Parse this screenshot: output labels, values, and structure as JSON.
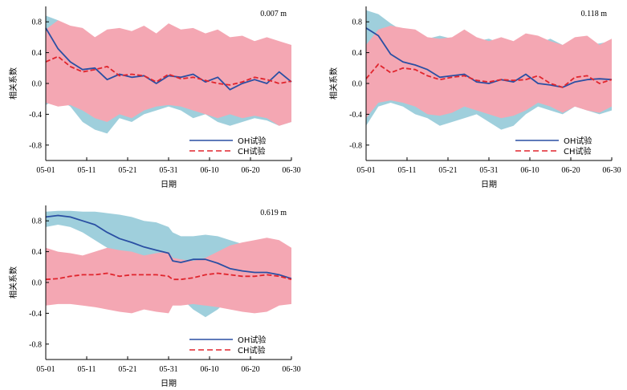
{
  "chart_data": [
    {
      "type": "line",
      "title": "0.007 m",
      "xlabel": "日期",
      "ylabel": "相关系数",
      "ylim": [
        -1.0,
        1.0
      ],
      "yticks": [
        -0.8,
        -0.4,
        0.0,
        0.4,
        0.8
      ],
      "ytick_labels": [
        "-0.8",
        "-0.4",
        "0.0",
        "0.4",
        "0.8"
      ],
      "xticks": [
        0,
        10,
        20,
        30,
        40,
        50,
        60
      ],
      "xtick_labels": [
        "05-01",
        "05-11",
        "05-21",
        "05-31",
        "06-10",
        "06-20",
        "06-30"
      ],
      "legend": {
        "position": "bottom-right",
        "entries": [
          "OH试验",
          "CH试验"
        ]
      },
      "colors": {
        "oh_line": "#2a4fa3",
        "ch_line": "#e0252d",
        "oh_band": "#9fcfdc",
        "ch_band": "#f4a7b3"
      },
      "x": [
        0,
        3,
        6,
        9,
        12,
        15,
        18,
        21,
        24,
        27,
        30,
        33,
        36,
        39,
        42,
        45,
        48,
        51,
        54,
        57,
        60
      ],
      "series": [
        {
          "name": "OH试验",
          "style": "solid",
          "values": [
            0.72,
            0.45,
            0.28,
            0.18,
            0.2,
            0.05,
            0.12,
            0.08,
            0.1,
            0.0,
            0.1,
            0.08,
            0.12,
            0.02,
            0.08,
            -0.08,
            0.0,
            0.05,
            0.0,
            0.15,
            0.02
          ]
        },
        {
          "name": "CH试验",
          "style": "dashed",
          "values": [
            0.28,
            0.35,
            0.22,
            0.15,
            0.18,
            0.22,
            0.1,
            0.12,
            0.1,
            0.02,
            0.12,
            0.06,
            0.08,
            0.04,
            0.0,
            -0.02,
            0.02,
            0.08,
            0.05,
            0.0,
            0.03
          ]
        }
      ],
      "oh_band": {
        "upper": [
          0.88,
          0.82,
          0.7,
          0.66,
          0.55,
          0.6,
          0.58,
          0.55,
          0.52,
          0.5,
          0.6,
          0.58,
          0.55,
          0.6,
          0.58,
          0.55,
          0.5,
          0.55,
          0.52,
          0.5,
          0.5
        ],
        "lower": [
          -0.28,
          -0.2,
          -0.3,
          -0.5,
          -0.6,
          -0.65,
          -0.45,
          -0.5,
          -0.4,
          -0.35,
          -0.3,
          -0.35,
          -0.45,
          -0.4,
          -0.5,
          -0.55,
          -0.5,
          -0.45,
          -0.48,
          -0.55,
          -0.5
        ]
      },
      "ch_band": {
        "upper": [
          0.7,
          0.82,
          0.75,
          0.72,
          0.6,
          0.7,
          0.72,
          0.68,
          0.75,
          0.65,
          0.78,
          0.7,
          0.72,
          0.65,
          0.7,
          0.6,
          0.62,
          0.55,
          0.6,
          0.55,
          0.5
        ],
        "lower": [
          -0.25,
          -0.3,
          -0.28,
          -0.35,
          -0.45,
          -0.5,
          -0.4,
          -0.45,
          -0.35,
          -0.3,
          -0.28,
          -0.3,
          -0.35,
          -0.4,
          -0.45,
          -0.4,
          -0.45,
          -0.42,
          -0.45,
          -0.55,
          -0.5
        ]
      }
    },
    {
      "type": "line",
      "title": "0.118 m",
      "xlabel": "日期",
      "ylabel": "相关系数",
      "ylim": [
        -1.0,
        1.0
      ],
      "yticks": [
        -0.8,
        -0.4,
        0.0,
        0.4,
        0.8
      ],
      "ytick_labels": [
        "-0.8",
        "-0.4",
        "0.0",
        "0.4",
        "0.8"
      ],
      "xticks": [
        0,
        10,
        20,
        30,
        40,
        50,
        60
      ],
      "xtick_labels": [
        "05-01",
        "05-11",
        "05-21",
        "05-31",
        "06-10",
        "06-20",
        "06-30"
      ],
      "legend": {
        "position": "bottom-right",
        "entries": [
          "OH试验",
          "CH试验"
        ]
      },
      "colors": {
        "oh_line": "#2a4fa3",
        "ch_line": "#e0252d",
        "oh_band": "#9fcfdc",
        "ch_band": "#f4a7b3"
      },
      "x": [
        0,
        3,
        6,
        9,
        12,
        15,
        18,
        21,
        24,
        27,
        30,
        33,
        36,
        39,
        42,
        45,
        48,
        51,
        54,
        57,
        60
      ],
      "series": [
        {
          "name": "OH试验",
          "style": "solid",
          "values": [
            0.72,
            0.62,
            0.38,
            0.28,
            0.24,
            0.18,
            0.08,
            0.1,
            0.12,
            0.02,
            0.0,
            0.05,
            0.02,
            0.12,
            0.0,
            -0.02,
            -0.05,
            0.02,
            0.05,
            0.06,
            0.05
          ]
        },
        {
          "name": "CH试验",
          "style": "dashed",
          "values": [
            0.06,
            0.25,
            0.14,
            0.2,
            0.18,
            0.1,
            0.05,
            0.08,
            0.1,
            0.04,
            0.02,
            0.05,
            0.04,
            0.05,
            0.1,
            0.0,
            -0.05,
            0.08,
            0.1,
            0.0,
            0.05
          ]
        }
      ],
      "oh_band": {
        "upper": [
          0.95,
          0.9,
          0.78,
          0.68,
          0.62,
          0.58,
          0.62,
          0.58,
          0.5,
          0.55,
          0.58,
          0.52,
          0.5,
          0.55,
          0.52,
          0.58,
          0.5,
          0.55,
          0.5,
          0.52,
          0.55
        ],
        "lower": [
          -0.55,
          -0.3,
          -0.25,
          -0.3,
          -0.4,
          -0.45,
          -0.55,
          -0.5,
          -0.45,
          -0.4,
          -0.5,
          -0.6,
          -0.55,
          -0.4,
          -0.3,
          -0.35,
          -0.4,
          -0.3,
          -0.35,
          -0.4,
          -0.35
        ]
      },
      "ch_band": {
        "upper": [
          0.5,
          0.7,
          0.75,
          0.72,
          0.7,
          0.6,
          0.58,
          0.6,
          0.7,
          0.6,
          0.55,
          0.6,
          0.55,
          0.65,
          0.62,
          0.55,
          0.5,
          0.6,
          0.62,
          0.5,
          0.58
        ],
        "lower": [
          -0.45,
          -0.25,
          -0.22,
          -0.25,
          -0.3,
          -0.4,
          -0.42,
          -0.38,
          -0.3,
          -0.35,
          -0.4,
          -0.45,
          -0.42,
          -0.35,
          -0.25,
          -0.3,
          -0.38,
          -0.3,
          -0.35,
          -0.38,
          -0.3
        ]
      }
    },
    {
      "type": "line",
      "title": "0.619 m",
      "xlabel": "日期",
      "ylabel": "相关系数",
      "ylim": [
        -1.0,
        1.0
      ],
      "yticks": [
        -0.8,
        -0.4,
        0.0,
        0.4,
        0.8
      ],
      "ytick_labels": [
        "-0.8",
        "-0.4",
        "0.0",
        "0.4",
        "0.8"
      ],
      "xticks": [
        0,
        10,
        20,
        30,
        40,
        50,
        60
      ],
      "xtick_labels": [
        "05-01",
        "05-11",
        "05-21",
        "05-31",
        "06-10",
        "06-20",
        "06-30"
      ],
      "legend": {
        "position": "bottom-center",
        "entries": [
          "OH试验",
          "CH试验"
        ]
      },
      "colors": {
        "oh_line": "#2a4fa3",
        "ch_line": "#e0252d",
        "oh_band": "#9fcfdc",
        "ch_band": "#f4a7b3"
      },
      "x": [
        0,
        3,
        6,
        9,
        12,
        15,
        18,
        21,
        24,
        27,
        30,
        31,
        33,
        36,
        39,
        42,
        45,
        48,
        51,
        54,
        57,
        60
      ],
      "series": [
        {
          "name": "OH试验",
          "style": "solid",
          "values": [
            0.85,
            0.87,
            0.85,
            0.8,
            0.75,
            0.65,
            0.57,
            0.52,
            0.46,
            0.42,
            0.38,
            0.28,
            0.26,
            0.3,
            0.3,
            0.25,
            0.18,
            0.15,
            0.13,
            0.13,
            0.1,
            0.05
          ]
        },
        {
          "name": "CH试验",
          "style": "dashed",
          "values": [
            0.04,
            0.05,
            0.08,
            0.1,
            0.1,
            0.12,
            0.08,
            0.1,
            0.1,
            0.1,
            0.08,
            0.04,
            0.04,
            0.06,
            0.1,
            0.12,
            0.1,
            0.08,
            0.08,
            0.1,
            0.08,
            0.04
          ]
        }
      ],
      "oh_band": {
        "upper": [
          0.92,
          0.93,
          0.93,
          0.92,
          0.92,
          0.9,
          0.88,
          0.85,
          0.8,
          0.78,
          0.72,
          0.65,
          0.6,
          0.6,
          0.62,
          0.6,
          0.55,
          0.5,
          0.45,
          0.45,
          0.4,
          0.4
        ],
        "lower": [
          0.72,
          0.75,
          0.72,
          0.65,
          0.55,
          0.45,
          0.4,
          0.3,
          0.2,
          0.05,
          -0.05,
          -0.15,
          -0.2,
          -0.35,
          -0.45,
          -0.35,
          -0.2,
          -0.15,
          -0.1,
          -0.15,
          -0.2,
          -0.25
        ]
      },
      "ch_band": {
        "upper": [
          0.45,
          0.4,
          0.38,
          0.35,
          0.4,
          0.45,
          0.42,
          0.4,
          0.35,
          0.38,
          0.4,
          0.32,
          0.3,
          0.28,
          0.32,
          0.4,
          0.48,
          0.52,
          0.55,
          0.58,
          0.55,
          0.45
        ],
        "lower": [
          -0.3,
          -0.28,
          -0.28,
          -0.3,
          -0.32,
          -0.35,
          -0.38,
          -0.4,
          -0.35,
          -0.38,
          -0.4,
          -0.3,
          -0.3,
          -0.28,
          -0.3,
          -0.32,
          -0.35,
          -0.38,
          -0.4,
          -0.38,
          -0.3,
          -0.28
        ]
      }
    }
  ]
}
